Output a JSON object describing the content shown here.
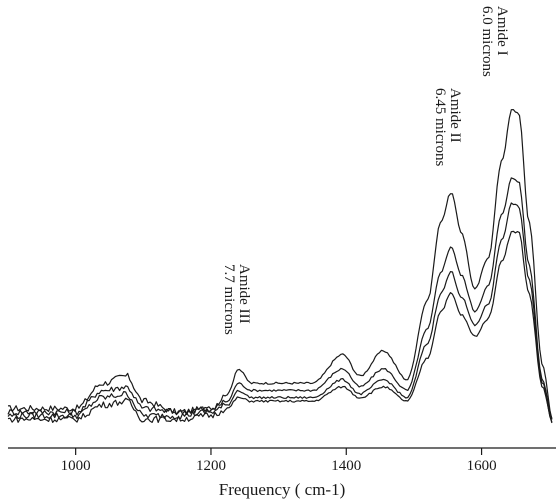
{
  "chart_data": {
    "type": "line",
    "title": "",
    "xlabel": "Frequency ( cm-1)",
    "ylabel": "",
    "xlim": [
      900,
      1710
    ],
    "ylim": [
      0,
      1
    ],
    "x_ticks": [
      1000,
      1200,
      1400,
      1600
    ],
    "grid": false,
    "legend": "none",
    "series": [
      {
        "values": [
          [
            900,
            0.06
          ],
          [
            950,
            0.06
          ],
          [
            1000,
            0.06
          ],
          [
            1040,
            0.13
          ],
          [
            1075,
            0.15
          ],
          [
            1100,
            0.08
          ],
          [
            1150,
            0.05
          ],
          [
            1200,
            0.06
          ],
          [
            1225,
            0.1
          ],
          [
            1240,
            0.17
          ],
          [
            1260,
            0.13
          ],
          [
            1300,
            0.13
          ],
          [
            1350,
            0.13
          ],
          [
            1395,
            0.21
          ],
          [
            1420,
            0.15
          ],
          [
            1455,
            0.22
          ],
          [
            1490,
            0.14
          ],
          [
            1520,
            0.36
          ],
          [
            1540,
            0.58
          ],
          [
            1555,
            0.66
          ],
          [
            1570,
            0.55
          ],
          [
            1590,
            0.39
          ],
          [
            1610,
            0.48
          ],
          [
            1630,
            0.75
          ],
          [
            1645,
            0.89
          ],
          [
            1655,
            0.88
          ],
          [
            1670,
            0.58
          ],
          [
            1690,
            0.18
          ],
          [
            1705,
            0.03
          ]
        ]
      },
      {
        "values": [
          [
            900,
            0.05
          ],
          [
            950,
            0.05
          ],
          [
            1000,
            0.05
          ],
          [
            1040,
            0.11
          ],
          [
            1075,
            0.12
          ],
          [
            1100,
            0.06
          ],
          [
            1150,
            0.05
          ],
          [
            1200,
            0.06
          ],
          [
            1225,
            0.08
          ],
          [
            1240,
            0.13
          ],
          [
            1260,
            0.11
          ],
          [
            1300,
            0.11
          ],
          [
            1350,
            0.11
          ],
          [
            1395,
            0.17
          ],
          [
            1420,
            0.12
          ],
          [
            1455,
            0.17
          ],
          [
            1490,
            0.11
          ],
          [
            1520,
            0.28
          ],
          [
            1540,
            0.44
          ],
          [
            1555,
            0.51
          ],
          [
            1570,
            0.43
          ],
          [
            1590,
            0.33
          ],
          [
            1610,
            0.4
          ],
          [
            1630,
            0.6
          ],
          [
            1645,
            0.7
          ],
          [
            1655,
            0.69
          ],
          [
            1670,
            0.46
          ],
          [
            1690,
            0.14
          ],
          [
            1705,
            0.03
          ]
        ]
      },
      {
        "values": [
          [
            900,
            0.04
          ],
          [
            950,
            0.04
          ],
          [
            1000,
            0.04
          ],
          [
            1040,
            0.09
          ],
          [
            1075,
            0.1
          ],
          [
            1100,
            0.04
          ],
          [
            1150,
            0.04
          ],
          [
            1200,
            0.05
          ],
          [
            1225,
            0.07
          ],
          [
            1240,
            0.11
          ],
          [
            1260,
            0.09
          ],
          [
            1300,
            0.09
          ],
          [
            1350,
            0.09
          ],
          [
            1395,
            0.14
          ],
          [
            1420,
            0.1
          ],
          [
            1455,
            0.14
          ],
          [
            1490,
            0.09
          ],
          [
            1520,
            0.24
          ],
          [
            1540,
            0.38
          ],
          [
            1555,
            0.44
          ],
          [
            1570,
            0.37
          ],
          [
            1590,
            0.29
          ],
          [
            1610,
            0.35
          ],
          [
            1630,
            0.53
          ],
          [
            1645,
            0.63
          ],
          [
            1655,
            0.62
          ],
          [
            1670,
            0.42
          ],
          [
            1690,
            0.13
          ],
          [
            1705,
            0.02
          ]
        ]
      },
      {
        "values": [
          [
            900,
            0.03
          ],
          [
            950,
            0.03
          ],
          [
            1000,
            0.03
          ],
          [
            1040,
            0.07
          ],
          [
            1075,
            0.08
          ],
          [
            1100,
            0.03
          ],
          [
            1150,
            0.03
          ],
          [
            1200,
            0.04
          ],
          [
            1225,
            0.06
          ],
          [
            1240,
            0.09
          ],
          [
            1260,
            0.08
          ],
          [
            1300,
            0.08
          ],
          [
            1350,
            0.08
          ],
          [
            1395,
            0.12
          ],
          [
            1420,
            0.09
          ],
          [
            1455,
            0.12
          ],
          [
            1490,
            0.08
          ],
          [
            1520,
            0.2
          ],
          [
            1540,
            0.33
          ],
          [
            1555,
            0.38
          ],
          [
            1570,
            0.32
          ],
          [
            1590,
            0.26
          ],
          [
            1610,
            0.31
          ],
          [
            1630,
            0.47
          ],
          [
            1645,
            0.55
          ],
          [
            1655,
            0.55
          ],
          [
            1670,
            0.38
          ],
          [
            1690,
            0.12
          ],
          [
            1705,
            0.02
          ]
        ]
      }
    ],
    "annotations": [
      {
        "lines": [
          "Amide I",
          "6.0 microns"
        ]
      },
      {
        "lines": [
          "Amide II",
          "6.45 microns"
        ]
      },
      {
        "lines": [
          "Amide III",
          "7.7  microns"
        ]
      }
    ]
  }
}
